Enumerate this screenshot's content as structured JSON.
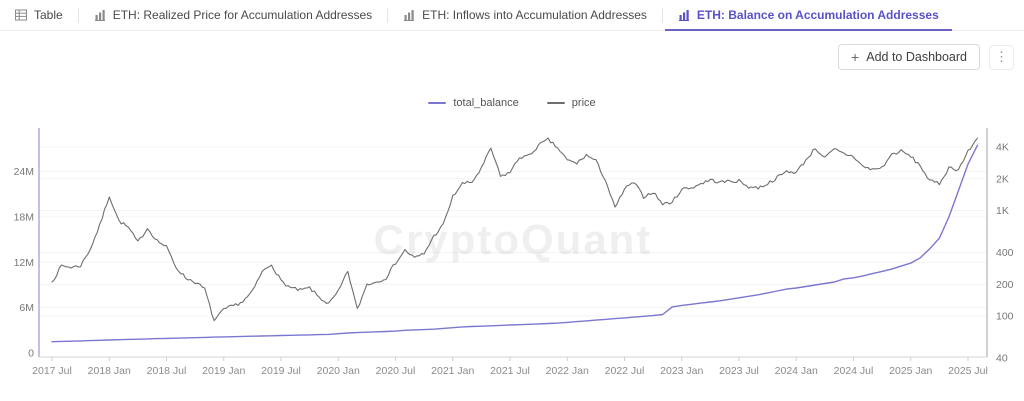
{
  "tab_bar": {
    "tabs": [
      {
        "label": "Table",
        "icon": "table-icon",
        "active": false
      },
      {
        "label": "ETH: Realized Price for Accumulation Addresses",
        "icon": "bar-chart-icon",
        "active": false
      },
      {
        "label": "ETH: Inflows into Accumulation Addresses",
        "icon": "bar-chart-icon",
        "active": false
      },
      {
        "label": "ETH: Balance on Accumulation Addresses",
        "icon": "bar-chart-icon",
        "active": true
      }
    ]
  },
  "toolbar": {
    "add_button_label": "Add to Dashboard",
    "plus_icon": "+",
    "kebab_icon": "⋮"
  },
  "watermark": "CryptoQuant",
  "colors": {
    "accent": "#5a51c9",
    "balance_line": "#7b77d0",
    "price_line": "#6e6e6e",
    "left_axis_line": "#a9a5d8",
    "right_axis_line": "#a0a0a0",
    "grid": "#f4f4f4"
  },
  "chart_data": {
    "type": "line",
    "title": "ETH: Balance on Accumulation Addresses",
    "legend": [
      "total_balance",
      "price"
    ],
    "legend_position": "top-center",
    "grid": true,
    "x_start": "2017-07",
    "x_end": "2025-08",
    "x_interval": "monthly",
    "x_ticks": [
      {
        "label": "2017 Jul",
        "i": 0
      },
      {
        "label": "2018 Jan",
        "i": 6
      },
      {
        "label": "2018 Jul",
        "i": 12
      },
      {
        "label": "2019 Jan",
        "i": 18
      },
      {
        "label": "2019 Jul",
        "i": 24
      },
      {
        "label": "2020 Jan",
        "i": 30
      },
      {
        "label": "2020 Jul",
        "i": 36
      },
      {
        "label": "2021 Jan",
        "i": 42
      },
      {
        "label": "2021 Jul",
        "i": 48
      },
      {
        "label": "2022 Jan",
        "i": 54
      },
      {
        "label": "2022 Jul",
        "i": 60
      },
      {
        "label": "2023 Jan",
        "i": 66
      },
      {
        "label": "2023 Jul",
        "i": 72
      },
      {
        "label": "2024 Jan",
        "i": 78
      },
      {
        "label": "2024 Jul",
        "i": 84
      },
      {
        "label": "2025 Jan",
        "i": 90
      },
      {
        "label": "2025 Jul",
        "i": 96
      }
    ],
    "left_axis": {
      "scale": "linear",
      "unit": "M ETH",
      "range": [
        0,
        30
      ],
      "ticks": [
        {
          "label": "0",
          "value": 0
        },
        {
          "label": "6M",
          "value": 6
        },
        {
          "label": "12M",
          "value": 12
        },
        {
          "label": "18M",
          "value": 18
        },
        {
          "label": "24M",
          "value": 24
        }
      ]
    },
    "right_axis": {
      "scale": "log",
      "unit": "USD",
      "range": [
        40,
        5500
      ],
      "ticks": [
        {
          "label": "40",
          "value": 40
        },
        {
          "label": "100",
          "value": 100
        },
        {
          "label": "200",
          "value": 200
        },
        {
          "label": "400",
          "value": 400
        },
        {
          "label": "1K",
          "value": 1000
        },
        {
          "label": "2K",
          "value": 2000
        },
        {
          "label": "4K",
          "value": 4000
        }
      ]
    },
    "series": [
      {
        "name": "total_balance",
        "axis": "left",
        "color": "#7b77d0",
        "unit": "M ETH",
        "style": "smooth",
        "values": [
          1.5,
          1.53,
          1.56,
          1.6,
          1.64,
          1.68,
          1.72,
          1.76,
          1.8,
          1.83,
          1.86,
          1.9,
          1.93,
          1.96,
          2.0,
          2.03,
          2.06,
          2.1,
          2.13,
          2.16,
          2.19,
          2.22,
          2.25,
          2.28,
          2.31,
          2.34,
          2.37,
          2.4,
          2.43,
          2.46,
          2.55,
          2.65,
          2.7,
          2.75,
          2.8,
          2.85,
          2.9,
          3.0,
          3.05,
          3.1,
          3.15,
          3.25,
          3.35,
          3.45,
          3.5,
          3.55,
          3.6,
          3.65,
          3.7,
          3.75,
          3.8,
          3.85,
          3.9,
          3.95,
          4.05,
          4.15,
          4.25,
          4.35,
          4.45,
          4.55,
          4.65,
          4.75,
          4.85,
          4.95,
          5.1,
          6.1,
          6.3,
          6.45,
          6.6,
          6.75,
          6.9,
          7.1,
          7.3,
          7.5,
          7.7,
          7.95,
          8.2,
          8.45,
          8.6,
          8.8,
          9.0,
          9.2,
          9.4,
          9.8,
          9.95,
          10.2,
          10.5,
          10.8,
          11.1,
          11.5,
          11.9,
          12.6,
          13.8,
          15.2,
          18.0,
          21.5,
          25.0,
          27.5
        ]
      },
      {
        "name": "price",
        "axis": "right",
        "color": "#6e6e6e",
        "unit": "USD",
        "style": "noisy",
        "values": [
          210,
          300,
          290,
          300,
          430,
          720,
          1380,
          800,
          690,
          500,
          680,
          520,
          450,
          290,
          230,
          210,
          180,
          90,
          115,
          125,
          137,
          170,
          260,
          310,
          215,
          185,
          175,
          185,
          150,
          130,
          170,
          265,
          115,
          200,
          210,
          230,
          320,
          420,
          355,
          390,
          570,
          730,
          1350,
          1800,
          1850,
          2500,
          3900,
          2100,
          2300,
          3200,
          3300,
          4150,
          4700,
          3900,
          3000,
          2800,
          3350,
          2950,
          1950,
          1050,
          1600,
          1850,
          1350,
          1500,
          1150,
          1200,
          1600,
          1640,
          1800,
          1950,
          1850,
          1900,
          1900,
          1680,
          1640,
          1800,
          2050,
          2350,
          2300,
          3000,
          3900,
          3150,
          3800,
          3450,
          3250,
          2600,
          2450,
          2550,
          3400,
          3650,
          3250,
          2650,
          1900,
          1800,
          2550,
          2450,
          3600,
          4850
        ]
      }
    ]
  }
}
